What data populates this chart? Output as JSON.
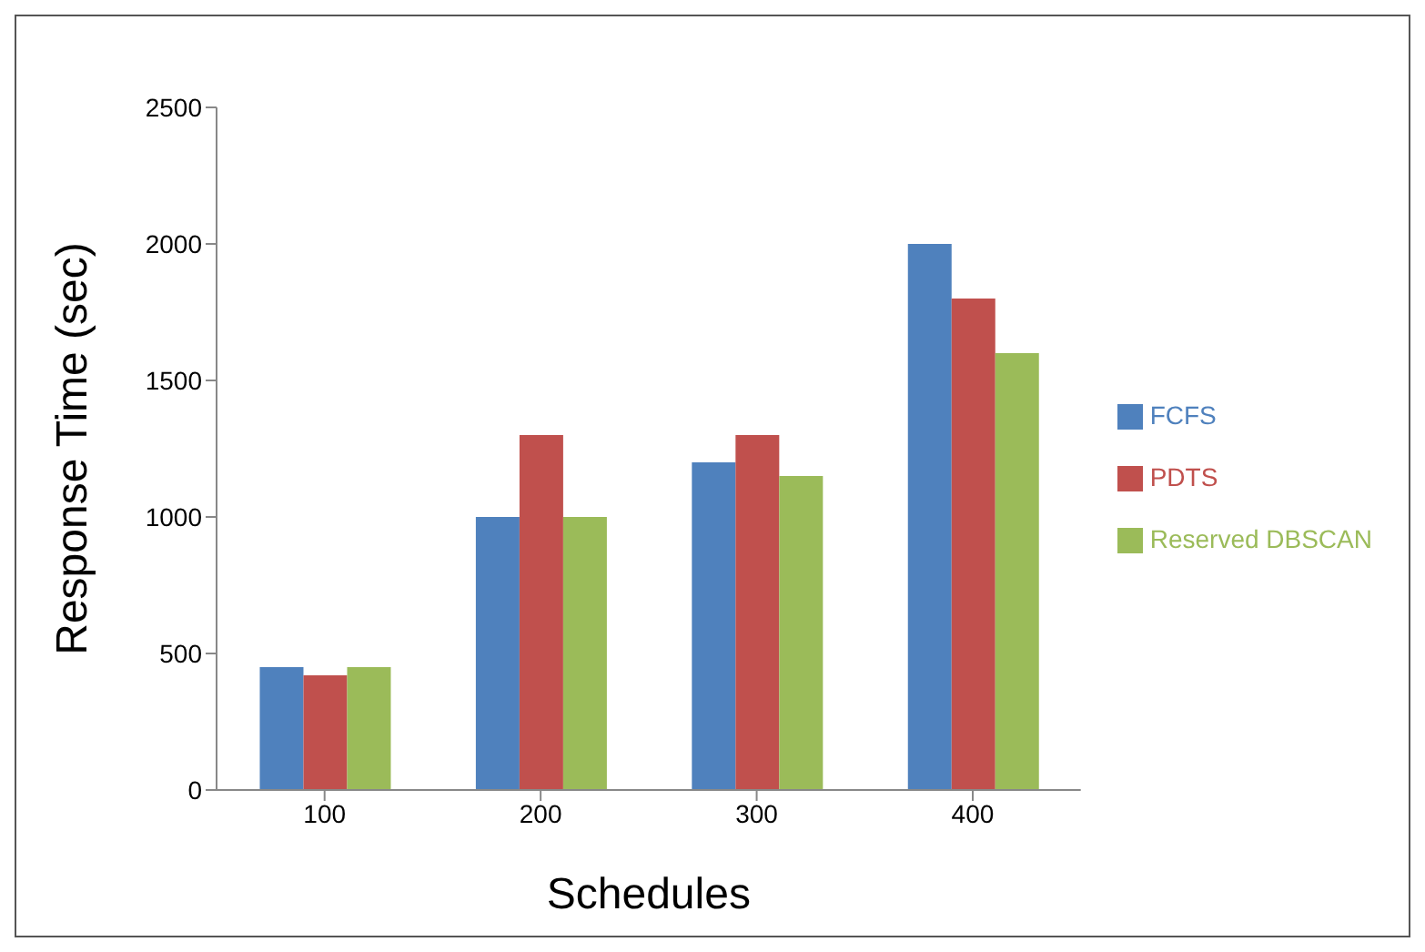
{
  "chart_data": {
    "type": "bar",
    "xlabel": "Schedules",
    "ylabel": "Response Time (sec)",
    "categories": [
      "100",
      "200",
      "300",
      "400"
    ],
    "series": [
      {
        "name": "FCFS",
        "color": "#4f81bd",
        "values": [
          450,
          1000,
          1200,
          2000
        ]
      },
      {
        "name": "PDTS",
        "color": "#c0504d",
        "values": [
          420,
          1300,
          1300,
          1800
        ]
      },
      {
        "name": "Reserved DBSCAN",
        "color": "#9bbb59",
        "values": [
          450,
          1000,
          1150,
          1600
        ]
      }
    ],
    "ylim": [
      0,
      2500
    ],
    "yticks": [
      0,
      500,
      1000,
      1500,
      2000,
      2500
    ],
    "grid": false,
    "legend": "right"
  }
}
